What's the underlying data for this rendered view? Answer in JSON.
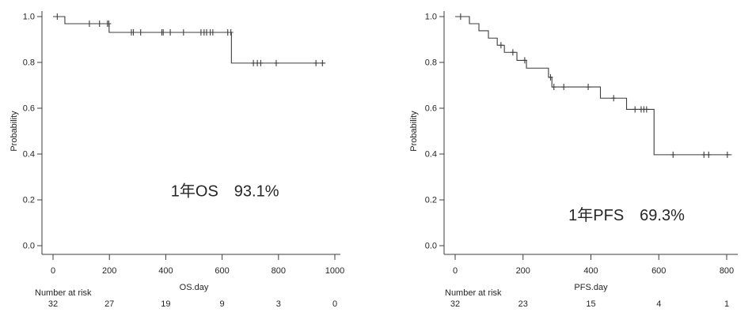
{
  "figure": {
    "type": "kaplan-meier-survival-plots",
    "background": "#ffffff",
    "line_color": "#3d3d3d",
    "text_color": "#262626"
  },
  "chart_data": [
    {
      "id": "os",
      "type": "line",
      "subtype": "kaplan-meier-step",
      "title": "",
      "xlabel": "OS.day",
      "ylabel": "Probability",
      "xlim": [
        0,
        1000
      ],
      "ylim": [
        0.0,
        1.0
      ],
      "xticks": [
        0,
        200,
        400,
        600,
        800,
        1000
      ],
      "yticks": [
        0.0,
        0.2,
        0.4,
        0.6,
        0.8,
        1.0
      ],
      "grid": false,
      "legend": false,
      "curve_start": [
        0,
        1.0
      ],
      "steps": [
        [
          42,
          0.969
        ],
        [
          199,
          0.931
        ],
        [
          633,
          0.797
        ]
      ],
      "curve_end_day": 967,
      "censor_marks": [
        [
          15,
          1.0
        ],
        [
          129,
          0.969
        ],
        [
          165,
          0.969
        ],
        [
          193,
          0.969
        ],
        [
          198,
          0.969
        ],
        [
          278,
          0.931
        ],
        [
          285,
          0.931
        ],
        [
          311,
          0.931
        ],
        [
          386,
          0.931
        ],
        [
          391,
          0.931
        ],
        [
          416,
          0.931
        ],
        [
          463,
          0.931
        ],
        [
          525,
          0.931
        ],
        [
          536,
          0.931
        ],
        [
          545,
          0.931
        ],
        [
          558,
          0.931
        ],
        [
          567,
          0.931
        ],
        [
          620,
          0.931
        ],
        [
          631,
          0.931
        ],
        [
          711,
          0.797
        ],
        [
          725,
          0.797
        ],
        [
          737,
          0.797
        ],
        [
          792,
          0.797
        ],
        [
          933,
          0.797
        ],
        [
          956,
          0.797
        ]
      ],
      "annotation": {
        "text": "1年OS　93.1%",
        "x_day": 610,
        "y_prob": 0.24
      },
      "number_at_risk": {
        "label": "Number at risk",
        "times": [
          0,
          200,
          400,
          600,
          800,
          1000
        ],
        "counts": [
          "32",
          "27",
          "19",
          "9",
          "3",
          "0"
        ]
      }
    },
    {
      "id": "pfs",
      "type": "line",
      "subtype": "kaplan-meier-step",
      "title": "",
      "xlabel": "PFS.day",
      "ylabel": "Probability",
      "xlim": [
        0,
        800
      ],
      "ylim": [
        0.0,
        1.0
      ],
      "xticks": [
        0,
        200,
        400,
        600,
        800
      ],
      "yticks": [
        0.0,
        0.2,
        0.4,
        0.6,
        0.8,
        1.0
      ],
      "grid": false,
      "legend": false,
      "curve_start": [
        0,
        1.0
      ],
      "steps": [
        [
          42,
          0.969
        ],
        [
          70,
          0.938
        ],
        [
          98,
          0.906
        ],
        [
          124,
          0.875
        ],
        [
          145,
          0.844
        ],
        [
          182,
          0.809
        ],
        [
          210,
          0.775
        ],
        [
          275,
          0.735
        ],
        [
          285,
          0.693
        ],
        [
          428,
          0.644
        ],
        [
          505,
          0.595
        ],
        [
          586,
          0.397
        ]
      ],
      "curve_end_day": 815,
      "censor_marks": [
        [
          16,
          1.0
        ],
        [
          135,
          0.875
        ],
        [
          170,
          0.844
        ],
        [
          205,
          0.809
        ],
        [
          281,
          0.735
        ],
        [
          291,
          0.693
        ],
        [
          320,
          0.693
        ],
        [
          392,
          0.693
        ],
        [
          467,
          0.644
        ],
        [
          530,
          0.595
        ],
        [
          548,
          0.595
        ],
        [
          556,
          0.595
        ],
        [
          564,
          0.595
        ],
        [
          642,
          0.397
        ],
        [
          733,
          0.397
        ],
        [
          747,
          0.397
        ],
        [
          802,
          0.397
        ]
      ],
      "annotation": {
        "text": "1年PFS　69.3%",
        "x_day": 505,
        "y_prob": 0.135
      },
      "number_at_risk": {
        "label": "Number at risk",
        "times": [
          0,
          200,
          400,
          600,
          800
        ],
        "counts": [
          "32",
          "23",
          "15",
          "4",
          "1"
        ]
      }
    }
  ]
}
